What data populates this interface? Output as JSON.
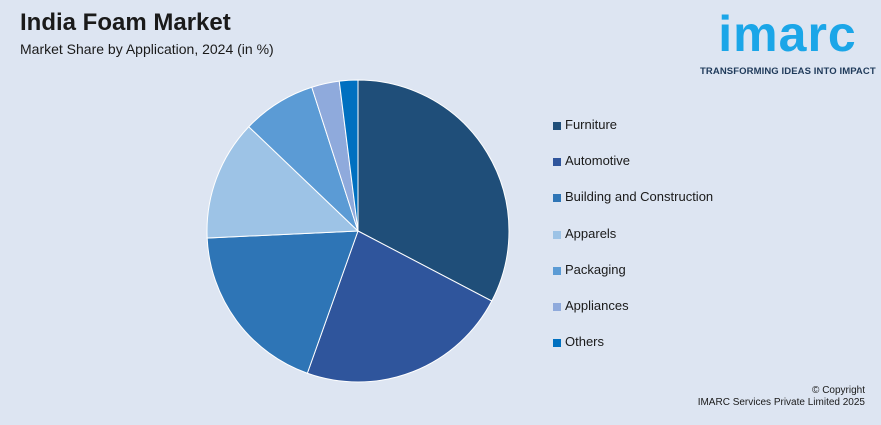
{
  "header": {
    "title": "India Foam Market",
    "subtitle": "Market Share by Application, 2024 (in %)"
  },
  "logo": {
    "brand": "imarc",
    "tagline": "TRANSFORMING IDEAS INTO IMPACT",
    "color": "#1ba6e8"
  },
  "chart_data": {
    "type": "pie",
    "title": "India Foam Market",
    "subtitle": "Market Share by Application, 2024 (in %)",
    "categories": [
      "Furniture",
      "Automotive",
      "Building and Construction",
      "Apparels",
      "Packaging",
      "Appliances",
      "Others"
    ],
    "values": [
      33,
      23,
      19,
      13,
      8,
      3,
      2
    ],
    "colors": [
      "#1f4e79",
      "#2f559c",
      "#2e75b6",
      "#9dc3e6",
      "#5b9bd5",
      "#8faadc",
      "#0070c0"
    ],
    "legend_position": "right",
    "start_angle": "12 o'clock, clockwise"
  },
  "footer": {
    "copyright_line1": "© Copyright",
    "copyright_line2": "IMARC Services Private Limited 2025"
  }
}
